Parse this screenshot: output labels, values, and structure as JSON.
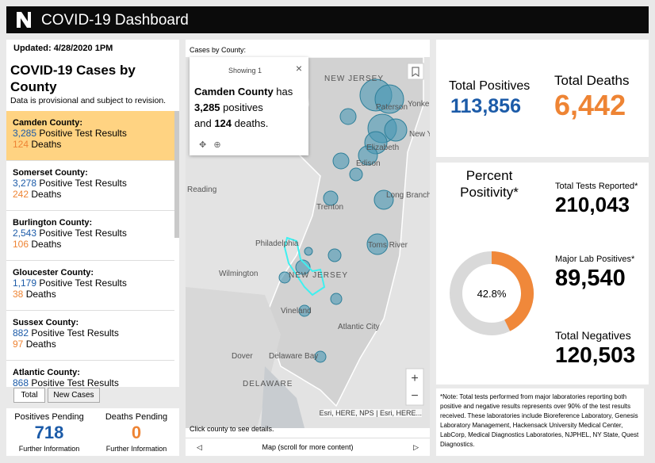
{
  "header": {
    "title": "COVID-19 Dashboard"
  },
  "cases_list": {
    "updated": "Updated: 4/28/2020 1PM",
    "title": "COVID-19 Cases by County",
    "subtitle": "Data is provisional and subject to revision.",
    "positives_label": "Positive Test Results",
    "deaths_label": "Deaths",
    "items": [
      {
        "county": "Camden County:",
        "positives": "3,285",
        "deaths": "124"
      },
      {
        "county": "Somerset County:",
        "positives": "3,278",
        "deaths": "242"
      },
      {
        "county": "Burlington County:",
        "positives": "2,543",
        "deaths": "106"
      },
      {
        "county": "Gloucester County:",
        "positives": "1,179",
        "deaths": "38"
      },
      {
        "county": "Sussex County:",
        "positives": "882",
        "deaths": "97"
      },
      {
        "county": "Atlantic County:",
        "positives": "868"
      }
    ],
    "tabs": [
      "Total",
      "New Cases"
    ]
  },
  "pending": {
    "positives_title": "Positives Pending",
    "positives": "718",
    "positives_note": "Further Information",
    "deaths_title": "Deaths Pending",
    "deaths": "0",
    "deaths_note": "Further Information"
  },
  "map": {
    "title": "Cases by County:",
    "popup": {
      "header": "Showing 1",
      "county": "Camden County",
      "has": "has",
      "positives": "3,285",
      "positives_word": "positives",
      "and": "and",
      "deaths": "124",
      "deaths_word": "deaths."
    },
    "labels": [
      "NEW JERSEY",
      "Paterson",
      "Yonke",
      "New York",
      "Elizabeth",
      "Edison",
      "Reading",
      "Trenton",
      "Long Branch",
      "Philadelphia",
      "Toms River",
      "Wilmington",
      "NEW JERSEY",
      "Vineland",
      "Atlantic City",
      "Dover",
      "Delaware Bay",
      "DELAWARE"
    ],
    "attribution": "Esri, HERE, NPS | Esri, HERE...",
    "footer": "Click county to see details.",
    "tab": "Map (scroll for more content)"
  },
  "totals": {
    "positives_title": "Total Positives",
    "positives": "113,856",
    "deaths_title": "Total Deaths",
    "deaths": "6,442"
  },
  "positivity": {
    "title": "Percent Positivity*",
    "value": 42.8,
    "label": "42.8%",
    "tests_title": "Total Tests Reported*",
    "tests": "210,043",
    "lab_title": "Major Lab Positives*",
    "lab": "89,540",
    "negatives_title": "Total Negatives",
    "negatives": "120,503"
  },
  "note": "*Note: Total tests performed from major laboratories reporting both positive and negative results represents over 90% of the test results  received. These laboratories include Bioreference Laboratory, Genesis Laboratory Management, Hackensack University Medical Center, LabCorp, Medical Diagnostics Laboratories, NJPHEL, NY State, Quest Diagnostics."
}
